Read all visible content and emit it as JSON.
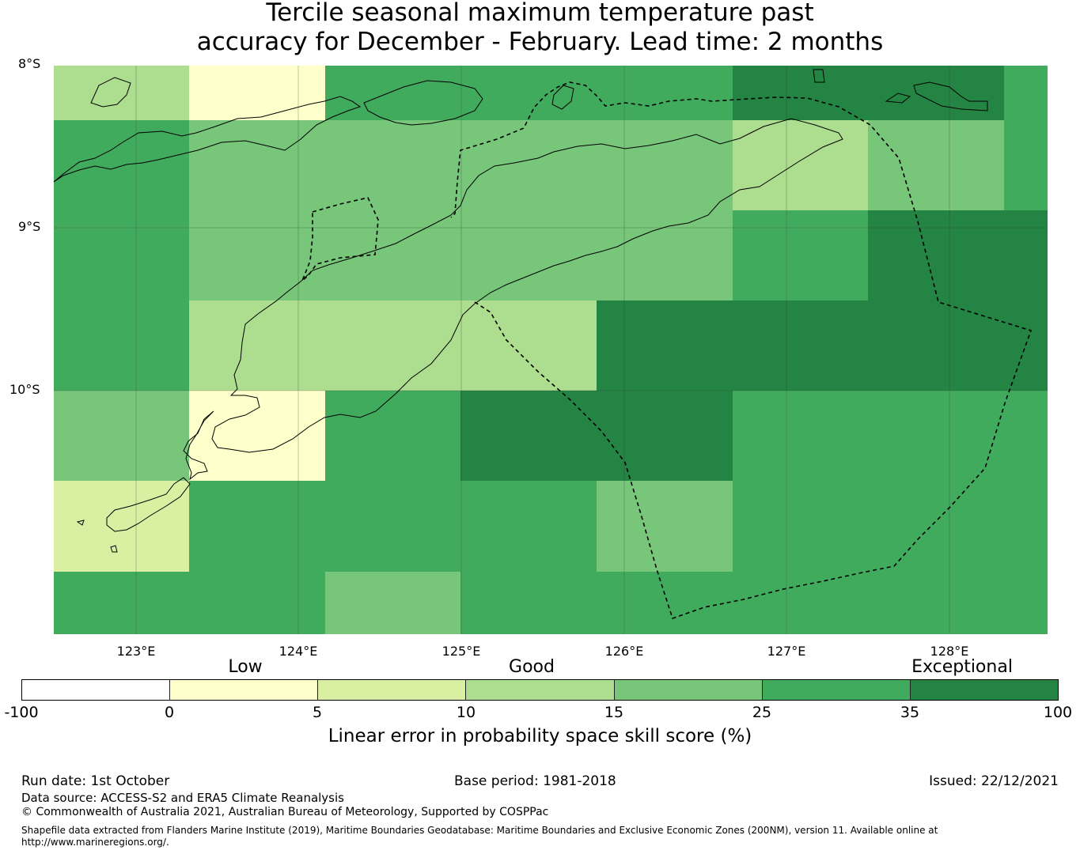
{
  "title_line1": "Tercile seasonal maximum temperature past",
  "title_line2": "accuracy for December - February. Lead time: 2 months",
  "lat_labels": [
    "8°S",
    "9°S",
    "10°S"
  ],
  "lon_labels": [
    "123°E",
    "124°E",
    "125°E",
    "126°E",
    "127°E",
    "128°E"
  ],
  "colorbar": {
    "categories": [
      "Low",
      "Good",
      "Exceptional"
    ],
    "ticks": [
      "-100",
      "0",
      "5",
      "10",
      "15",
      "25",
      "35",
      "100"
    ],
    "colors": [
      "#ffffff",
      "#ffffcc",
      "#d9f0a3",
      "#addd8e",
      "#78c679",
      "#41ab5d",
      "#238443"
    ],
    "label": "Linear error in probability space skill score (%)"
  },
  "map_grid": {
    "levels": [
      [
        3,
        1,
        5,
        5,
        5,
        6,
        6,
        5
      ],
      [
        5,
        4,
        4,
        4,
        4,
        3,
        4,
        5
      ],
      [
        5,
        4,
        4,
        4,
        4,
        5,
        6,
        6
      ],
      [
        5,
        3,
        3,
        3,
        6,
        6,
        6,
        6
      ],
      [
        4,
        1,
        5,
        6,
        6,
        5,
        5,
        5
      ],
      [
        2,
        5,
        5,
        5,
        4,
        5,
        5,
        5
      ],
      [
        5,
        5,
        4,
        5,
        5,
        5,
        5,
        5
      ]
    ]
  },
  "footer": {
    "run_date": "Run date: 1st October",
    "base_period": "Base period: 1981-2018",
    "issued": "Issued: 22/12/2021",
    "data_source": "Data source: ACCESS-S2 and ERA5 Climate Reanalysis",
    "copyright": "© Commonwealth of Australia 2021, Australian Bureau of Meteorology, Supported by COSPPac",
    "shapefile_line1": "Shapefile data extracted from Flanders Marine Institute (2019), Maritime Boundaries Geodatabase: Maritime Boundaries and Exclusive Economic Zones (200NM), version 11. Available online at",
    "shapefile_line2": "http://www.marineregions.org/."
  }
}
